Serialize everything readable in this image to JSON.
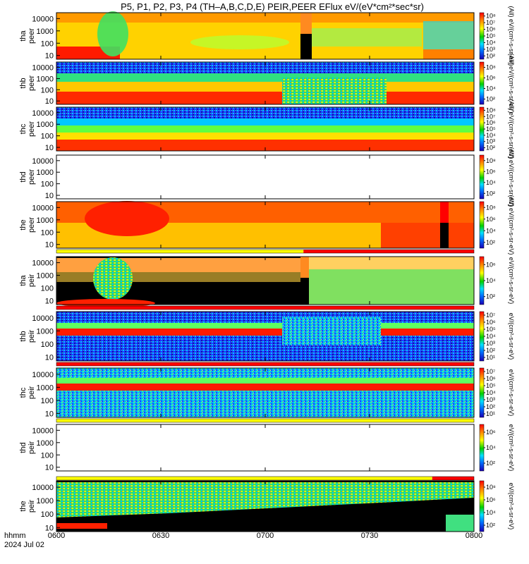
{
  "title": "P5, P1, P2, P3, P4 (TH–A,B,C,D,E) PEIR,PEER EFlux eV/(eV*cm²*sec*sr)",
  "colorbar_units": {
    "peer": "(All) eV/(cm²-s-sr-eV)",
    "peir": "eV/(cm²-s-sr-eV)"
  },
  "date_labels": {
    "hhmm": "hhmm",
    "date": "2024 Jul 02"
  },
  "chart_data": {
    "type": "heatmap",
    "x": {
      "label": "hhmm",
      "range": [
        "0600",
        "0800"
      ],
      "ticks": [
        "0600",
        "0630",
        "0700",
        "0730",
        "0800"
      ]
    },
    "y": {
      "scale": "log",
      "range": [
        5,
        30000
      ],
      "ticks": [
        "10",
        "100",
        "1000",
        "10000"
      ]
    },
    "panels": [
      {
        "id": "tha-peer",
        "probe": "tha",
        "instrument": "peer",
        "cbar_ticks": [
          "10²",
          "10³",
          "10⁴",
          "10⁵",
          "10⁶",
          "10⁷",
          "10⁸"
        ],
        "status_bar": null
      },
      {
        "id": "thb-peer",
        "probe": "thb",
        "instrument": "peer",
        "cbar_ticks": [
          "10²",
          "10⁴",
          "10⁶",
          "10⁸"
        ],
        "status_bar": null
      },
      {
        "id": "thc-peer",
        "probe": "thc",
        "instrument": "peer",
        "cbar_ticks": [
          "10²",
          "10³",
          "10⁴",
          "10⁵",
          "10⁶",
          "10⁷",
          "10⁸"
        ],
        "status_bar": null
      },
      {
        "id": "thd-peer",
        "probe": "thd",
        "instrument": "peer",
        "cbar_ticks": [
          "10²",
          "10⁴",
          "10⁶",
          "10⁸"
        ],
        "status_bar": null
      },
      {
        "id": "the-peer",
        "probe": "the",
        "instrument": "peer",
        "cbar_ticks": [
          "10²",
          "10⁴",
          "10⁶",
          "10⁸"
        ],
        "status_bar": null
      },
      {
        "id": "tha-peir",
        "probe": "tha",
        "instrument": "peir",
        "cbar_ticks": [
          "10²",
          "10⁴",
          "10⁶"
        ],
        "status_bar": {
          "segments": [
            [
              "0600",
              "0711",
              "#ffff00"
            ],
            [
              "0711",
              "0800",
              "#ff0000"
            ]
          ]
        }
      },
      {
        "id": "thb-peir",
        "probe": "thb",
        "instrument": "peir",
        "cbar_ticks": [
          "10¹",
          "10²",
          "10³",
          "10⁴",
          "10⁵",
          "10⁶",
          "10⁷"
        ],
        "status_bar": {
          "segments": [
            [
              "0600",
              "0800",
              "#ff0000"
            ]
          ]
        }
      },
      {
        "id": "thc-peir",
        "probe": "thc",
        "instrument": "peir",
        "cbar_ticks": [
          "10¹",
          "10²",
          "10³",
          "10⁴",
          "10⁵",
          "10⁶",
          "10⁷"
        ],
        "status_bar": {
          "segments": [
            [
              "0600",
              "0800",
              "#ff0000"
            ]
          ]
        }
      },
      {
        "id": "thd-peir",
        "probe": "thd",
        "instrument": "peir",
        "cbar_ticks": [
          "10²",
          "10⁴",
          "10⁶"
        ],
        "status_bar": {
          "segments": [
            [
              "0600",
              "0800",
              "#ffff00"
            ]
          ]
        }
      },
      {
        "id": "the-peir",
        "probe": "the",
        "instrument": "peir",
        "cbar_ticks": [
          "10²",
          "10⁴",
          "10⁶",
          "10⁸"
        ],
        "status_bar": {
          "segments": [
            [
              "0600",
              "0748",
              "#ffff00"
            ],
            [
              "0748",
              "0800",
              "#ff0000"
            ]
          ]
        }
      }
    ]
  }
}
